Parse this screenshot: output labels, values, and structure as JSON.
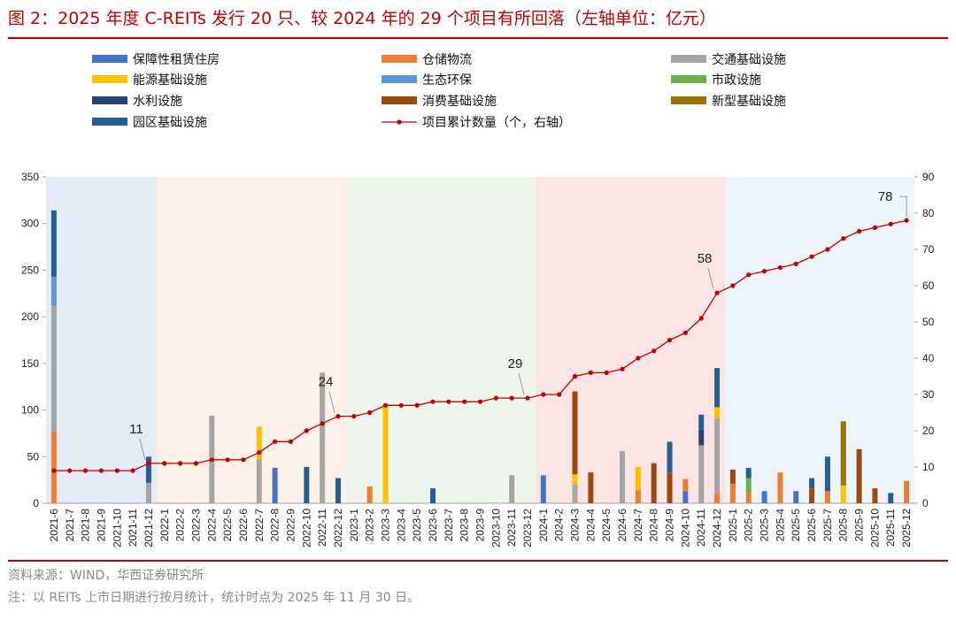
{
  "title": "图 2：2025 年度 C-REITs 发行 20 只、较 2024 年的 29 个项目有所回落（左轴单位：亿元）",
  "footer": {
    "source": "资料来源：WIND，华西证券研究所",
    "note": "注：以 REITs 上市日期进行按月统计，统计时点为 2025 年 11 月 30 日。"
  },
  "colors": {
    "保障性租赁住房": "#4472c4",
    "仓储物流": "#ed7d31",
    "交通基础设施": "#a5a5a5",
    "能源基础设施": "#ffc000",
    "生态环保": "#5b9bd5",
    "市政设施": "#70ad47",
    "水利设施": "#264478",
    "消费基础设施": "#9e480e",
    "新型基础设施": "#997300",
    "园区基础设施": "#255e91",
    "项目累计数量": "#c00000"
  },
  "chart_data": {
    "type": "bar",
    "stacked": true,
    "title": "2025 年度 C-REITs 发行 20 只、较 2024 年的 29 个项目有所回落",
    "xlabel": "",
    "ylabel": "亿元",
    "ylim": [
      0,
      350
    ],
    "yticks": [
      0,
      50,
      100,
      150,
      200,
      250,
      300,
      350
    ],
    "y2lim": [
      0,
      90
    ],
    "y2ticks": [
      0,
      10,
      20,
      30,
      40,
      50,
      60,
      70,
      80,
      90
    ],
    "categories": [
      "2021-6",
      "2021-7",
      "2021-8",
      "2021-9",
      "2021-10",
      "2021-11",
      "2021-12",
      "2022-1",
      "2022-2",
      "2022-3",
      "2022-4",
      "2022-5",
      "2022-6",
      "2022-7",
      "2022-8",
      "2022-9",
      "2022-10",
      "2022-11",
      "2022-12",
      "2023-1",
      "2023-2",
      "2023-3",
      "2023-4",
      "2023-5",
      "2023-6",
      "2023-7",
      "2023-8",
      "2023-9",
      "2023-10",
      "2023-11",
      "2023-12",
      "2024-1",
      "2024-2",
      "2024-3",
      "2024-4",
      "2024-5",
      "2024-6",
      "2024-7",
      "2024-8",
      "2024-9",
      "2024-10",
      "2024-11",
      "2024-12",
      "2025-1",
      "2025-2",
      "2025-3",
      "2025-4",
      "2025-5",
      "2025-6",
      "2025-7",
      "2025-8",
      "2025-9",
      "2025-10",
      "2025-11",
      "2025-12"
    ],
    "series": [
      {
        "name": "保障性租赁住房",
        "values": [
          0,
          0,
          0,
          0,
          0,
          0,
          0,
          0,
          0,
          0,
          0,
          0,
          0,
          0,
          38,
          0,
          0,
          0,
          0,
          0,
          0,
          0,
          0,
          0,
          0,
          0,
          0,
          0,
          0,
          0,
          0,
          30,
          0,
          0,
          0,
          0,
          0,
          0,
          0,
          0,
          13,
          0,
          0,
          0,
          0,
          13,
          0,
          13,
          0,
          0,
          0,
          0,
          0,
          0,
          0
        ]
      },
      {
        "name": "仓储物流",
        "values": [
          77,
          0,
          0,
          0,
          0,
          0,
          0,
          0,
          0,
          0,
          0,
          0,
          0,
          0,
          0,
          0,
          0,
          0,
          0,
          0,
          18,
          0,
          0,
          0,
          0,
          0,
          0,
          0,
          0,
          0,
          0,
          0,
          0,
          0,
          0,
          0,
          0,
          14,
          0,
          0,
          13,
          0,
          11,
          21,
          12,
          0,
          33,
          0,
          0,
          13,
          0,
          0,
          0,
          0,
          24
        ]
      },
      {
        "name": "交通基础设施",
        "values": [
          135,
          0,
          0,
          0,
          0,
          0,
          22,
          0,
          0,
          0,
          94,
          0,
          0,
          47,
          0,
          0,
          0,
          140,
          0,
          0,
          0,
          0,
          0,
          0,
          0,
          0,
          0,
          0,
          0,
          30,
          0,
          0,
          0,
          20,
          0,
          0,
          56,
          0,
          0,
          0,
          0,
          62,
          80,
          0,
          0,
          0,
          0,
          0,
          0,
          0,
          0,
          0,
          0,
          0,
          0
        ]
      },
      {
        "name": "能源基础设施",
        "values": [
          0,
          0,
          0,
          0,
          0,
          0,
          0,
          0,
          0,
          0,
          0,
          0,
          0,
          35,
          0,
          0,
          0,
          0,
          0,
          0,
          0,
          105,
          0,
          0,
          0,
          0,
          0,
          0,
          0,
          0,
          0,
          0,
          0,
          11,
          0,
          0,
          0,
          25,
          0,
          0,
          0,
          0,
          12,
          0,
          0,
          0,
          0,
          0,
          0,
          0,
          19,
          0,
          0,
          0,
          0
        ]
      },
      {
        "name": "生态环保",
        "values": [
          31,
          0,
          0,
          0,
          0,
          0,
          0,
          0,
          0,
          0,
          0,
          0,
          0,
          0,
          0,
          0,
          0,
          0,
          0,
          0,
          0,
          0,
          0,
          0,
          0,
          0,
          0,
          0,
          0,
          0,
          0,
          0,
          0,
          0,
          0,
          0,
          0,
          0,
          0,
          0,
          0,
          0,
          0,
          0,
          0,
          0,
          0,
          0,
          0,
          0,
          0,
          0,
          0,
          0,
          0
        ]
      },
      {
        "name": "市政设施",
        "values": [
          0,
          0,
          0,
          0,
          0,
          0,
          0,
          0,
          0,
          0,
          0,
          0,
          0,
          0,
          0,
          0,
          0,
          0,
          0,
          0,
          0,
          0,
          0,
          0,
          0,
          0,
          0,
          0,
          0,
          0,
          0,
          0,
          0,
          0,
          0,
          0,
          0,
          0,
          0,
          0,
          0,
          0,
          0,
          0,
          15,
          0,
          0,
          0,
          0,
          0,
          0,
          0,
          0,
          0,
          0
        ]
      },
      {
        "name": "水利设施",
        "values": [
          0,
          0,
          0,
          0,
          0,
          0,
          0,
          0,
          0,
          0,
          0,
          0,
          0,
          0,
          0,
          0,
          0,
          0,
          0,
          0,
          0,
          0,
          0,
          0,
          0,
          0,
          0,
          0,
          0,
          0,
          0,
          0,
          0,
          0,
          0,
          0,
          0,
          0,
          0,
          0,
          0,
          17,
          0,
          0,
          0,
          0,
          0,
          0,
          0,
          0,
          0,
          0,
          0,
          0,
          0
        ]
      },
      {
        "name": "消费基础设施",
        "values": [
          0,
          0,
          0,
          0,
          0,
          0,
          0,
          0,
          0,
          0,
          0,
          0,
          0,
          0,
          0,
          0,
          0,
          0,
          0,
          0,
          0,
          0,
          0,
          0,
          0,
          0,
          0,
          0,
          0,
          0,
          0,
          0,
          0,
          89,
          33,
          0,
          0,
          0,
          43,
          33,
          0,
          0,
          0,
          15,
          0,
          0,
          0,
          0,
          16,
          0,
          0,
          58,
          16,
          0,
          0
        ]
      },
      {
        "name": "新型基础设施",
        "values": [
          0,
          0,
          0,
          0,
          0,
          0,
          0,
          0,
          0,
          0,
          0,
          0,
          0,
          0,
          0,
          0,
          0,
          0,
          0,
          0,
          0,
          0,
          0,
          0,
          0,
          0,
          0,
          0,
          0,
          0,
          0,
          0,
          0,
          0,
          0,
          0,
          0,
          0,
          0,
          0,
          0,
          0,
          0,
          0,
          0,
          0,
          0,
          0,
          0,
          0,
          69,
          0,
          0,
          0,
          0
        ]
      },
      {
        "name": "园区基础设施",
        "values": [
          71,
          0,
          0,
          0,
          0,
          0,
          28,
          0,
          0,
          0,
          0,
          0,
          0,
          0,
          0,
          0,
          39,
          0,
          27,
          0,
          0,
          0,
          0,
          0,
          16,
          0,
          0,
          0,
          0,
          0,
          0,
          0,
          0,
          0,
          0,
          0,
          0,
          0,
          0,
          33,
          0,
          16,
          42,
          0,
          11,
          0,
          0,
          0,
          11,
          37,
          0,
          0,
          0,
          11,
          0
        ]
      }
    ],
    "line": {
      "name": "项目累计数量（个，右轴）",
      "axis": "right",
      "values": [
        9,
        9,
        9,
        9,
        9,
        9,
        11,
        11,
        11,
        11,
        12,
        12,
        12,
        14,
        17,
        17,
        20,
        22,
        24,
        24,
        25,
        27,
        27,
        27,
        28,
        28,
        28,
        28,
        29,
        29,
        29,
        30,
        30,
        35,
        36,
        36,
        37,
        40,
        42,
        45,
        47,
        51,
        58,
        60,
        63,
        64,
        65,
        66,
        68,
        70,
        73,
        75,
        76,
        77,
        78
      ]
    },
    "annotations": [
      {
        "category": "2021-12",
        "text": "11"
      },
      {
        "category": "2022-12",
        "text": "24"
      },
      {
        "category": "2023-12",
        "text": "29"
      },
      {
        "category": "2024-12",
        "text": "58"
      },
      {
        "category": "2025-12",
        "text": "78"
      }
    ],
    "background_bands": [
      {
        "from": "2021-6",
        "to": "2021-12",
        "color": "#e4ebf6"
      },
      {
        "from": "2022-1",
        "to": "2022-12",
        "color": "#fcf0e8"
      },
      {
        "from": "2023-1",
        "to": "2023-12",
        "color": "#eef5ec"
      },
      {
        "from": "2024-1",
        "to": "2024-12",
        "color": "#fbe4e4"
      },
      {
        "from": "2025-1",
        "to": "2025-12",
        "color": "#eef4fb"
      }
    ]
  }
}
